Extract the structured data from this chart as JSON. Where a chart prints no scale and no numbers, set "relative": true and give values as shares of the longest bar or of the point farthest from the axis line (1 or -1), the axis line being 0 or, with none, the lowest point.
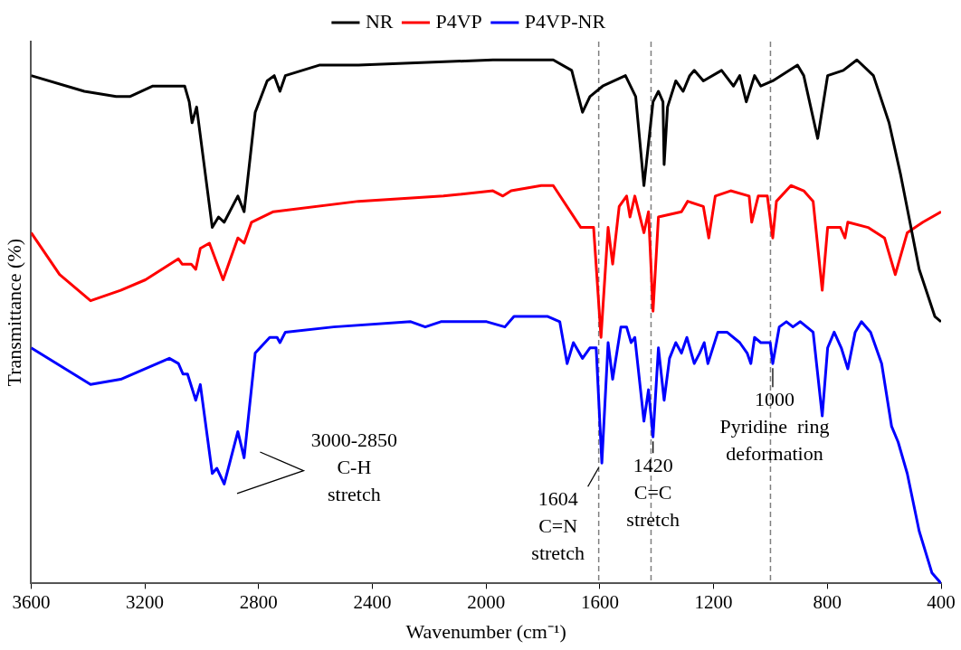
{
  "chart_data": {
    "type": "line",
    "relative": true,
    "xlabel": "Wavenumber (cm⁻¹)",
    "ylabel": "Transmittance (%)",
    "xlim": [
      3600,
      400
    ],
    "xticks": [
      3600,
      3200,
      2800,
      2400,
      2000,
      1600,
      1200,
      800,
      400
    ],
    "legend": "top",
    "grid": false,
    "marker": "none",
    "line_style": "solid",
    "series": [
      {
        "name": "NR",
        "color": "#000000",
        "x": [
          3600,
          3413,
          3301,
          3253,
          3172,
          3076,
          3060,
          3044,
          3034,
          3018,
          2963,
          2941,
          2921,
          2873,
          2851,
          2812,
          2770,
          2745,
          2725,
          2706,
          2587,
          2513,
          2449,
          1976,
          1764,
          1699,
          1661,
          1635,
          1590,
          1510,
          1474,
          1445,
          1413,
          1394,
          1378,
          1374,
          1362,
          1333,
          1307,
          1284,
          1268,
          1236,
          1172,
          1130,
          1108,
          1085,
          1056,
          1034,
          992,
          905,
          883,
          834,
          799,
          744,
          696,
          638,
          583,
          542,
          477,
          422,
          400
        ],
        "values": [
          0.97,
          0.94,
          0.93,
          0.93,
          0.95,
          0.95,
          0.95,
          0.92,
          0.88,
          0.91,
          0.68,
          0.7,
          0.69,
          0.74,
          0.71,
          0.9,
          0.96,
          0.97,
          0.94,
          0.97,
          0.99,
          0.99,
          0.99,
          1.0,
          1.0,
          0.98,
          0.9,
          0.93,
          0.95,
          0.97,
          0.93,
          0.76,
          0.92,
          0.94,
          0.92,
          0.8,
          0.91,
          0.96,
          0.94,
          0.97,
          0.98,
          0.96,
          0.98,
          0.95,
          0.97,
          0.92,
          0.97,
          0.95,
          0.96,
          0.99,
          0.97,
          0.85,
          0.97,
          0.98,
          1.0,
          0.97,
          0.88,
          0.78,
          0.6,
          0.51,
          0.5
        ]
      },
      {
        "name": "P4VP",
        "color": "#ff0000",
        "x": [
          3600,
          3500,
          3391,
          3285,
          3198,
          3082,
          3069,
          3037,
          3021,
          3005,
          2973,
          2925,
          2873,
          2851,
          2825,
          2748,
          2449,
          2150,
          1976,
          1941,
          1912,
          1806,
          1764,
          1667,
          1622,
          1596,
          1571,
          1555,
          1532,
          1506,
          1494,
          1477,
          1445,
          1429,
          1413,
          1394,
          1313,
          1291,
          1236,
          1217,
          1194,
          1140,
          1075,
          1066,
          1043,
          1011,
          992,
          979,
          928,
          883,
          850,
          818,
          799,
          754,
          738,
          728,
          657,
          599,
          561,
          519,
          464,
          400
        ],
        "values": [
          0.67,
          0.59,
          0.54,
          0.56,
          0.58,
          0.62,
          0.61,
          0.61,
          0.6,
          0.64,
          0.65,
          0.58,
          0.66,
          0.65,
          0.69,
          0.71,
          0.73,
          0.74,
          0.75,
          0.74,
          0.75,
          0.76,
          0.76,
          0.68,
          0.68,
          0.47,
          0.68,
          0.61,
          0.72,
          0.74,
          0.7,
          0.74,
          0.67,
          0.71,
          0.52,
          0.7,
          0.71,
          0.73,
          0.72,
          0.66,
          0.74,
          0.75,
          0.74,
          0.69,
          0.74,
          0.74,
          0.66,
          0.73,
          0.76,
          0.75,
          0.73,
          0.56,
          0.68,
          0.68,
          0.66,
          0.69,
          0.68,
          0.66,
          0.59,
          0.67,
          0.69,
          0.71
        ]
      },
      {
        "name": "P4VP-NR",
        "color": "#0000ff",
        "x": [
          3600,
          3391,
          3285,
          3114,
          3082,
          3066,
          3050,
          3021,
          3005,
          2963,
          2947,
          2921,
          2873,
          2851,
          2812,
          2761,
          2735,
          2725,
          2706,
          2536,
          2265,
          2214,
          2159,
          1998,
          1934,
          1902,
          1783,
          1741,
          1715,
          1693,
          1661,
          1635,
          1613,
          1593,
          1571,
          1555,
          1526,
          1506,
          1490,
          1477,
          1445,
          1429,
          1413,
          1394,
          1374,
          1355,
          1333,
          1313,
          1294,
          1268,
          1249,
          1233,
          1220,
          1185,
          1153,
          1108,
          1082,
          1069,
          1056,
          1034,
          1001,
          992,
          969,
          944,
          921,
          895,
          850,
          818,
          799,
          776,
          751,
          728,
          702,
          680,
          648,
          609,
          574,
          551,
          519,
          477,
          432,
          400
        ],
        "values": [
          0.45,
          0.38,
          0.39,
          0.43,
          0.42,
          0.4,
          0.4,
          0.35,
          0.38,
          0.21,
          0.22,
          0.19,
          0.29,
          0.24,
          0.44,
          0.47,
          0.47,
          0.46,
          0.48,
          0.49,
          0.5,
          0.49,
          0.5,
          0.5,
          0.49,
          0.51,
          0.51,
          0.5,
          0.42,
          0.46,
          0.43,
          0.45,
          0.45,
          0.23,
          0.46,
          0.39,
          0.49,
          0.49,
          0.46,
          0.47,
          0.31,
          0.37,
          0.28,
          0.45,
          0.35,
          0.43,
          0.46,
          0.44,
          0.47,
          0.42,
          0.44,
          0.46,
          0.42,
          0.48,
          0.48,
          0.46,
          0.44,
          0.42,
          0.47,
          0.46,
          0.46,
          0.42,
          0.49,
          0.5,
          0.49,
          0.5,
          0.48,
          0.32,
          0.45,
          0.48,
          0.45,
          0.41,
          0.48,
          0.5,
          0.48,
          0.42,
          0.3,
          0.27,
          0.21,
          0.1,
          0.02,
          0.0
        ]
      }
    ],
    "ref_lines": [
      {
        "axis": "x",
        "value": 1604,
        "color": "#7f7f7f",
        "line_style": "dashed"
      },
      {
        "axis": "x",
        "value": 1420,
        "color": "#7f7f7f",
        "line_style": "dashed"
      },
      {
        "axis": "x",
        "value": 1000,
        "color": "#7f7f7f",
        "line_style": "dashed"
      }
    ],
    "annotations": [
      "3000-2850\nC-H\nstretch",
      {
        "text": "1604\nC=N\nstretch",
        "x": 1604,
        "y": 0.23
      },
      {
        "text": "1420\nC=C\nstretch",
        "x": 1413,
        "y": 0.28
      },
      {
        "text": "1000\nPyridine  ring\ndeformation",
        "x": 992,
        "y": 0.42
      }
    ]
  }
}
